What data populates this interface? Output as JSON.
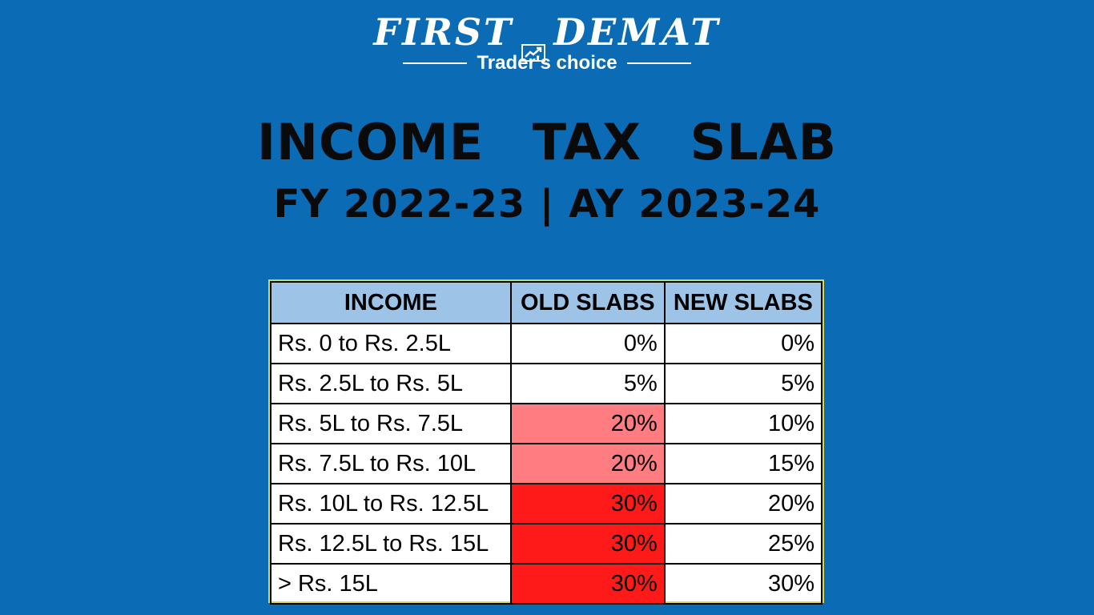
{
  "logo": {
    "brand_left": "FIRST",
    "brand_right": "DEMAT",
    "tagline": "Trader's choice",
    "icon": "chart-up-icon"
  },
  "heading": {
    "title": "INCOME TAX SLAB",
    "subtitle": "FY 2022-23 | AY 2023-24"
  },
  "colors": {
    "background": "#0b6bb5",
    "header_fill": "#9dc3e6",
    "highlight_20": "#ff7c80",
    "highlight_30": "#ff1a1a"
  },
  "table": {
    "headers": [
      "INCOME",
      "OLD SLABS",
      "NEW SLABS"
    ],
    "rows": [
      {
        "income": "Rs. 0 to Rs. 2.5L",
        "old": "0%",
        "new": "0%"
      },
      {
        "income": "Rs. 2.5L to Rs. 5L",
        "old": "5%",
        "new": "5%"
      },
      {
        "income": "Rs. 5L to Rs. 7.5L",
        "old": "20%",
        "new": "10%"
      },
      {
        "income": "Rs. 7.5L to Rs. 10L",
        "old": "20%",
        "new": "15%"
      },
      {
        "income": "Rs. 10L to Rs. 12.5L",
        "old": "30%",
        "new": "20%"
      },
      {
        "income": "Rs. 12.5L to Rs. 15L",
        "old": "30%",
        "new": "25%"
      },
      {
        "income": "> Rs. 15L",
        "old": "30%",
        "new": "30%"
      }
    ]
  }
}
